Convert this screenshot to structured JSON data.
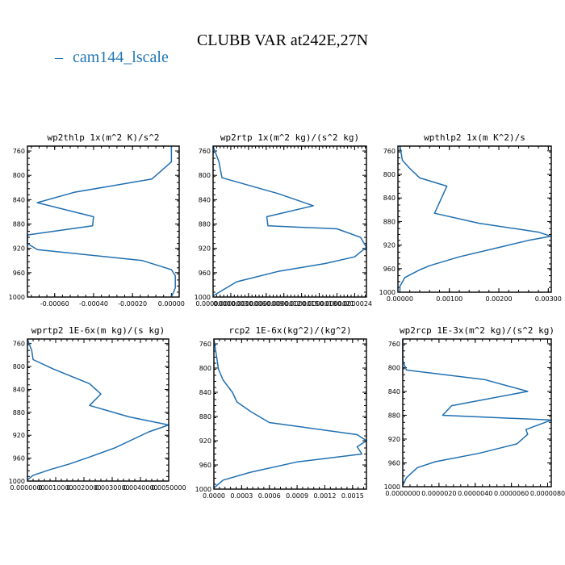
{
  "figure": {
    "title": "CLUBB VAR at242E,27N",
    "legend": {
      "label": "cam144_lscale",
      "marker": "–",
      "color": "#1f77b4"
    }
  },
  "chart_data": [
    {
      "type": "line",
      "title": "wp2thlp  1x(m^2 K)/s^2",
      "xlim": [
        -0.00074,
        4e-05
      ],
      "ylim": [
        1000,
        752
      ],
      "xticks": [
        -0.0006,
        -0.0004,
        -0.0002,
        0.0
      ],
      "xtick_labels": [
        "-0.00060",
        "-0.00040",
        "-0.00020",
        "0.00000"
      ],
      "yticks": [
        760,
        800,
        840,
        880,
        920,
        960,
        1000
      ],
      "series": [
        {
          "color": "#1f77b4",
          "x": [
            0.0,
            0.0,
            -0.0001,
            -0.0005,
            -0.00069,
            -0.0004,
            -0.000405,
            -0.00074,
            -0.00074,
            -0.00069,
            -0.00015,
            -5e-05,
            0.0,
            2e-05,
            2e-05,
            0.0
          ],
          "y": [
            752,
            778,
            806,
            828,
            845,
            868,
            883,
            898,
            912,
            922,
            940,
            950,
            955,
            965,
            985,
            1000
          ]
        }
      ]
    },
    {
      "type": "line",
      "title": "wp2rtp  1x(m^2 kg)/(s^2 kg)",
      "xlim": [
        0.0,
        2.6e-06
      ],
      "ylim": [
        1000,
        752
      ],
      "xticks": [
        0.0,
        3e-07,
        6e-07,
        9e-07,
        1.2e-06,
        1.5e-06,
        1.8e-06,
        2.1e-06,
        2.4e-06
      ],
      "xtick_labels": [
        "0.0000000",
        "0.0000003",
        "0.0000006",
        "0.0000009",
        "0.0000012",
        "0.0000015",
        "0.0000018",
        "0.0000021",
        "0.0000024"
      ],
      "yticks": [
        760,
        800,
        840,
        880,
        920,
        960,
        1000
      ],
      "series": [
        {
          "color": "#1f77b4",
          "x": [
            0.0,
            1e-07,
            1.5e-07,
            1.1e-06,
            1.7e-06,
            9.1e-07,
            9.3e-07,
            2.1e-06,
            2.5e-06,
            2.6e-06,
            2.4e-06,
            1.9e-06,
            1.1e-06,
            4e-07,
            0.0
          ],
          "y": [
            752,
            778,
            804,
            830,
            850,
            868,
            883,
            888,
            902,
            918,
            934,
            945,
            958,
            975,
            998
          ]
        }
      ]
    },
    {
      "type": "line",
      "title": "wpthlp2  1x(m K^2)/s",
      "xlim": [
        -4e-05,
        0.00306
      ],
      "ylim": [
        1000,
        752
      ],
      "xticks": [
        0.0,
        0.001,
        0.002,
        0.003
      ],
      "xtick_labels": [
        "0.00000",
        "0.00100",
        "0.00200",
        "0.00300"
      ],
      "yticks": [
        760,
        800,
        840,
        880,
        920,
        960,
        1000
      ],
      "series": [
        {
          "color": "#1f77b4",
          "x": [
            0.0,
            5e-05,
            0.0002,
            0.0004,
            0.00095,
            0.0007,
            0.0016,
            0.0028,
            0.00305,
            0.0026,
            0.0021,
            0.0012,
            0.0006,
            0.0004,
            0.0001,
            0.0,
            0.0
          ],
          "y": [
            752,
            776,
            790,
            806,
            820,
            866,
            883,
            898,
            905,
            912,
            922,
            940,
            955,
            962,
            975,
            990,
            998
          ]
        }
      ]
    },
    {
      "type": "line",
      "title": "wprtp2  1E-6x(m kg)/(s kg)",
      "xlim": [
        0.0,
        0.005
      ],
      "ylim": [
        1000,
        752
      ],
      "xticks": [
        0.0,
        0.001,
        0.002,
        0.003,
        0.004,
        0.005
      ],
      "xtick_labels": [
        "0.0000000",
        "0.0010000",
        "0.0020000",
        "0.0030000",
        "0.0040000",
        "0.0050000"
      ],
      "yticks": [
        760,
        800,
        840,
        880,
        920,
        960,
        1000
      ],
      "series": [
        {
          "color": "#1f77b4",
          "x": [
            0.0,
            0.00015,
            0.0002,
            0.0009,
            0.0022,
            0.0026,
            0.0022,
            0.0036,
            0.005,
            0.0043,
            0.0031,
            0.0022,
            0.0015,
            0.0008,
            0.0002,
            0.0
          ],
          "y": [
            752,
            772,
            788,
            804,
            830,
            848,
            868,
            888,
            902,
            914,
            942,
            958,
            970,
            980,
            990,
            998
          ]
        }
      ]
    },
    {
      "type": "line",
      "title": "rcp2  1E-6x(kg^2)/(kg^2)",
      "xlim": [
        0.0,
        0.00165
      ],
      "ylim": [
        1000,
        752
      ],
      "xticks": [
        0.0,
        0.0003,
        0.0006,
        0.0009,
        0.0012,
        0.0015
      ],
      "xtick_labels": [
        "0.0000",
        "0.0003",
        "0.0006",
        "0.0009",
        "0.0012",
        "0.0015"
      ],
      "yticks": [
        760,
        800,
        840,
        880,
        920,
        960,
        1000
      ],
      "series": [
        {
          "color": "#1f77b4",
          "x": [
            0.0,
            5e-05,
            0.0001,
            0.0002,
            0.00025,
            0.0004,
            0.0006,
            0.00155,
            0.00165,
            0.00155,
            0.0016,
            0.0009,
            0.0004,
            0.0001,
            0.0
          ],
          "y": [
            752,
            802,
            820,
            840,
            856,
            872,
            890,
            910,
            920,
            930,
            942,
            955,
            972,
            985,
            998
          ]
        }
      ]
    },
    {
      "type": "line",
      "title": "wp2rcp  1E-3x(m^2 kg)/(s^2 kg)",
      "xlim": [
        0.0,
        8.2e-06
      ],
      "ylim": [
        1000,
        752
      ],
      "xticks": [
        0.0,
        2e-06,
        4e-06,
        6e-06,
        8e-06
      ],
      "xtick_labels": [
        "0.0000000",
        "0.0000020",
        "0.0000040",
        "0.0000060",
        "0.0000080"
      ],
      "yticks": [
        760,
        800,
        840,
        880,
        920,
        960,
        1000
      ],
      "series": [
        {
          "color": "#1f77b4",
          "x": [
            0.0,
            0.0,
            2e-07,
            4.5e-06,
            6.9e-06,
            2.7e-06,
            2.2e-06,
            8.2e-06,
            6.8e-06,
            6.9e-06,
            6.3e-06,
            4.2e-06,
            1.8e-06,
            8e-07,
            2e-07,
            0.0
          ],
          "y": [
            752,
            788,
            804,
            820,
            840,
            864,
            880,
            888,
            904,
            912,
            928,
            944,
            958,
            968,
            985,
            998
          ]
        }
      ]
    }
  ]
}
